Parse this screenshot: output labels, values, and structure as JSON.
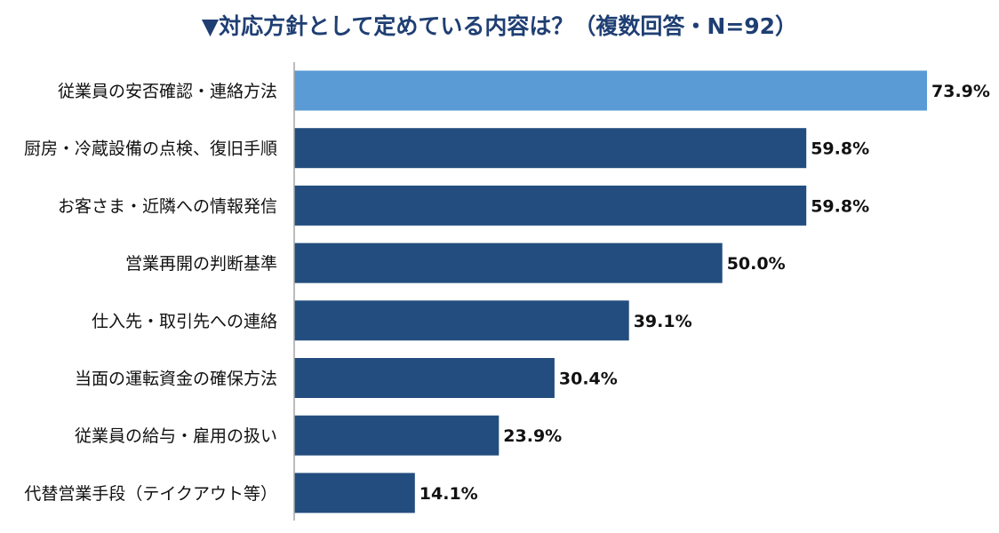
{
  "chart_data": {
    "type": "bar",
    "orientation": "horizontal",
    "title": "▼対応方針として定めている内容は？（複数回答・N=92）",
    "categories": [
      "従業員の安否確認・連絡方法",
      "厨房・冷蔵設備の点検、復旧手順",
      "お客さま・近隣への情報発信",
      "営業再開の判断基準",
      "仕入先・取引先への連絡",
      "当面の運転資金の確保方法",
      "従業員の給与・雇用の扱い",
      "代替営業手段（テイクアウト等）"
    ],
    "values": [
      73.9,
      59.8,
      59.8,
      50.0,
      39.1,
      30.4,
      23.9,
      14.1
    ],
    "data_labels": [
      "73.9%",
      "59.8%",
      "59.8%",
      "50.0%",
      "39.1%",
      "30.4%",
      "23.9%",
      "14.1%"
    ],
    "xlim": [
      0,
      75
    ],
    "grid": false,
    "legend": "none",
    "colors": {
      "highlight": "#5b9bd5",
      "default": "#234d7e",
      "axis": "#a6a6a6",
      "title": "#1f3f73"
    },
    "highlight_index": 0
  }
}
